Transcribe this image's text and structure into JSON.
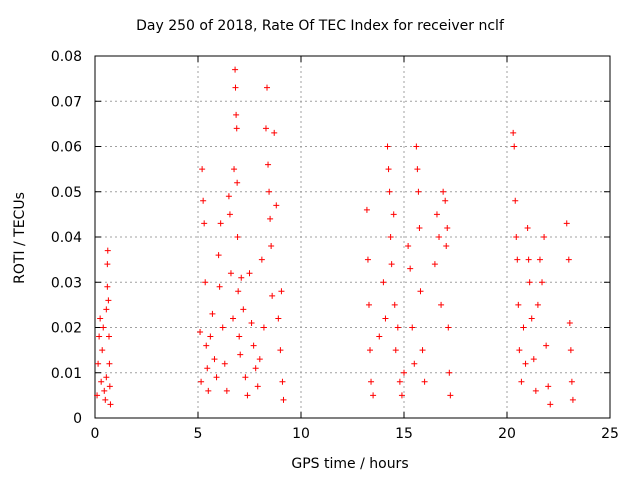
{
  "chart_data": {
    "type": "scatter",
    "title": "Day 250 of 2018, Rate Of TEC Index for receiver nclf",
    "xlabel": "GPS time / hours",
    "ylabel": "ROTI / TECUs",
    "xlim": [
      0,
      25
    ],
    "ylim": [
      0,
      0.08
    ],
    "xticks": [
      "0",
      "5",
      "10",
      "15",
      "20",
      "25"
    ],
    "yticks": [
      "0",
      "0.01",
      "0.02",
      "0.03",
      "0.04",
      "0.05",
      "0.06",
      "0.07",
      "0.08"
    ],
    "grid": true,
    "marker": "+",
    "color": "#ff0000",
    "series": [
      {
        "name": "ROTI",
        "points": [
          [
            0.1,
            0.005
          ],
          [
            0.15,
            0.012
          ],
          [
            0.2,
            0.018
          ],
          [
            0.25,
            0.022
          ],
          [
            0.3,
            0.008
          ],
          [
            0.35,
            0.015
          ],
          [
            0.4,
            0.02
          ],
          [
            0.45,
            0.006
          ],
          [
            0.5,
            0.004
          ],
          [
            0.55,
            0.009
          ],
          [
            0.6,
            0.034
          ],
          [
            0.62,
            0.037
          ],
          [
            0.65,
            0.026
          ],
          [
            0.68,
            0.018
          ],
          [
            0.7,
            0.012
          ],
          [
            0.72,
            0.007
          ],
          [
            0.75,
            0.003
          ],
          [
            0.6,
            0.029
          ],
          [
            0.55,
            0.024
          ],
          [
            5.1,
            0.019
          ],
          [
            5.15,
            0.008
          ],
          [
            5.2,
            0.055
          ],
          [
            5.25,
            0.048
          ],
          [
            5.3,
            0.043
          ],
          [
            5.35,
            0.03
          ],
          [
            5.4,
            0.016
          ],
          [
            5.45,
            0.011
          ],
          [
            5.5,
            0.006
          ],
          [
            5.6,
            0.018
          ],
          [
            5.7,
            0.023
          ],
          [
            5.8,
            0.013
          ],
          [
            5.9,
            0.009
          ],
          [
            6.0,
            0.036
          ],
          [
            6.05,
            0.029
          ],
          [
            6.1,
            0.043
          ],
          [
            6.2,
            0.02
          ],
          [
            6.3,
            0.012
          ],
          [
            6.4,
            0.006
          ],
          [
            6.5,
            0.049
          ],
          [
            6.55,
            0.045
          ],
          [
            6.6,
            0.032
          ],
          [
            6.7,
            0.022
          ],
          [
            6.75,
            0.055
          ],
          [
            6.8,
            0.077
          ],
          [
            6.82,
            0.073
          ],
          [
            6.85,
            0.067
          ],
          [
            6.88,
            0.064
          ],
          [
            6.9,
            0.052
          ],
          [
            6.92,
            0.04
          ],
          [
            6.95,
            0.028
          ],
          [
            7.0,
            0.018
          ],
          [
            7.05,
            0.014
          ],
          [
            7.1,
            0.031
          ],
          [
            7.2,
            0.024
          ],
          [
            7.3,
            0.009
          ],
          [
            7.4,
            0.005
          ],
          [
            7.5,
            0.032
          ],
          [
            7.6,
            0.021
          ],
          [
            7.7,
            0.016
          ],
          [
            7.8,
            0.011
          ],
          [
            7.9,
            0.007
          ],
          [
            8.0,
            0.013
          ],
          [
            8.1,
            0.035
          ],
          [
            8.2,
            0.02
          ],
          [
            8.3,
            0.064
          ],
          [
            8.35,
            0.073
          ],
          [
            8.4,
            0.056
          ],
          [
            8.45,
            0.05
          ],
          [
            8.5,
            0.044
          ],
          [
            8.55,
            0.038
          ],
          [
            8.6,
            0.027
          ],
          [
            8.7,
            0.063
          ],
          [
            8.8,
            0.047
          ],
          [
            8.9,
            0.022
          ],
          [
            9.0,
            0.015
          ],
          [
            9.05,
            0.028
          ],
          [
            9.1,
            0.008
          ],
          [
            9.15,
            0.004
          ],
          [
            13.2,
            0.046
          ],
          [
            13.25,
            0.035
          ],
          [
            13.3,
            0.025
          ],
          [
            13.35,
            0.015
          ],
          [
            13.4,
            0.008
          ],
          [
            13.5,
            0.005
          ],
          [
            13.8,
            0.018
          ],
          [
            14.0,
            0.03
          ],
          [
            14.1,
            0.022
          ],
          [
            14.2,
            0.06
          ],
          [
            14.25,
            0.055
          ],
          [
            14.3,
            0.05
          ],
          [
            14.35,
            0.04
          ],
          [
            14.4,
            0.034
          ],
          [
            14.5,
            0.045
          ],
          [
            14.55,
            0.025
          ],
          [
            14.6,
            0.015
          ],
          [
            14.7,
            0.02
          ],
          [
            14.8,
            0.008
          ],
          [
            14.9,
            0.005
          ],
          [
            15.0,
            0.01
          ],
          [
            15.2,
            0.038
          ],
          [
            15.3,
            0.033
          ],
          [
            15.4,
            0.02
          ],
          [
            15.5,
            0.012
          ],
          [
            15.6,
            0.06
          ],
          [
            15.65,
            0.055
          ],
          [
            15.7,
            0.05
          ],
          [
            15.75,
            0.042
          ],
          [
            15.8,
            0.028
          ],
          [
            15.9,
            0.015
          ],
          [
            16.0,
            0.008
          ],
          [
            16.5,
            0.034
          ],
          [
            16.6,
            0.045
          ],
          [
            16.7,
            0.04
          ],
          [
            16.8,
            0.025
          ],
          [
            16.9,
            0.05
          ],
          [
            17.0,
            0.048
          ],
          [
            17.05,
            0.038
          ],
          [
            17.1,
            0.042
          ],
          [
            17.15,
            0.02
          ],
          [
            17.2,
            0.01
          ],
          [
            17.25,
            0.005
          ],
          [
            20.3,
            0.063
          ],
          [
            20.35,
            0.06
          ],
          [
            20.4,
            0.048
          ],
          [
            20.45,
            0.04
          ],
          [
            20.5,
            0.035
          ],
          [
            20.55,
            0.025
          ],
          [
            20.6,
            0.015
          ],
          [
            20.7,
            0.008
          ],
          [
            20.8,
            0.02
          ],
          [
            20.9,
            0.012
          ],
          [
            21.0,
            0.042
          ],
          [
            21.05,
            0.035
          ],
          [
            21.1,
            0.03
          ],
          [
            21.2,
            0.022
          ],
          [
            21.3,
            0.013
          ],
          [
            21.4,
            0.006
          ],
          [
            21.5,
            0.025
          ],
          [
            21.6,
            0.035
          ],
          [
            21.7,
            0.03
          ],
          [
            21.8,
            0.04
          ],
          [
            21.9,
            0.016
          ],
          [
            22.0,
            0.007
          ],
          [
            22.1,
            0.003
          ],
          [
            22.9,
            0.043
          ],
          [
            23.0,
            0.035
          ],
          [
            23.05,
            0.021
          ],
          [
            23.1,
            0.015
          ],
          [
            23.15,
            0.008
          ],
          [
            23.2,
            0.004
          ]
        ]
      }
    ]
  }
}
